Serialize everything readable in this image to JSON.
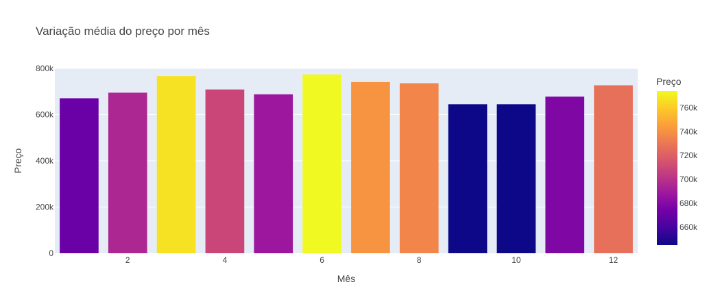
{
  "chart_data": {
    "type": "bar",
    "title": "Variação média do preço por mês",
    "xlabel": "Mês",
    "ylabel": "Preço",
    "x": [
      1,
      2,
      3,
      4,
      5,
      6,
      7,
      8,
      9,
      10,
      11,
      12
    ],
    "values": [
      671000,
      695000,
      767000,
      709000,
      688000,
      774000,
      741000,
      736000,
      645000,
      645000,
      678000,
      727000
    ],
    "xlim": [
      0.5,
      12.5
    ],
    "ylim": [
      0,
      800000
    ],
    "x_ticks": [
      2,
      4,
      6,
      8,
      10,
      12
    ],
    "x_tick_labels": [
      "2",
      "4",
      "6",
      "8",
      "10",
      "12"
    ],
    "y_ticks": [
      0,
      200000,
      400000,
      600000,
      800000
    ],
    "y_tick_labels": [
      "0",
      "200k",
      "400k",
      "600k",
      "800k"
    ],
    "grid": true,
    "colorscale": [
      "#0d0887",
      "#46039f",
      "#7201a8",
      "#9c179e",
      "#bd3786",
      "#d8576b",
      "#ed7953",
      "#fb9f3a",
      "#fdca26",
      "#f0f921"
    ],
    "colorbar": {
      "title": "Preço",
      "range": [
        645000,
        774000
      ],
      "ticks": [
        660000,
        680000,
        700000,
        720000,
        740000,
        760000
      ],
      "tick_labels": [
        "660k",
        "680k",
        "700k",
        "720k",
        "740k",
        "760k"
      ]
    },
    "colors": {
      "plot_bg": "#E5ECF6",
      "grid": "#ffffff",
      "text": "#444444"
    }
  }
}
